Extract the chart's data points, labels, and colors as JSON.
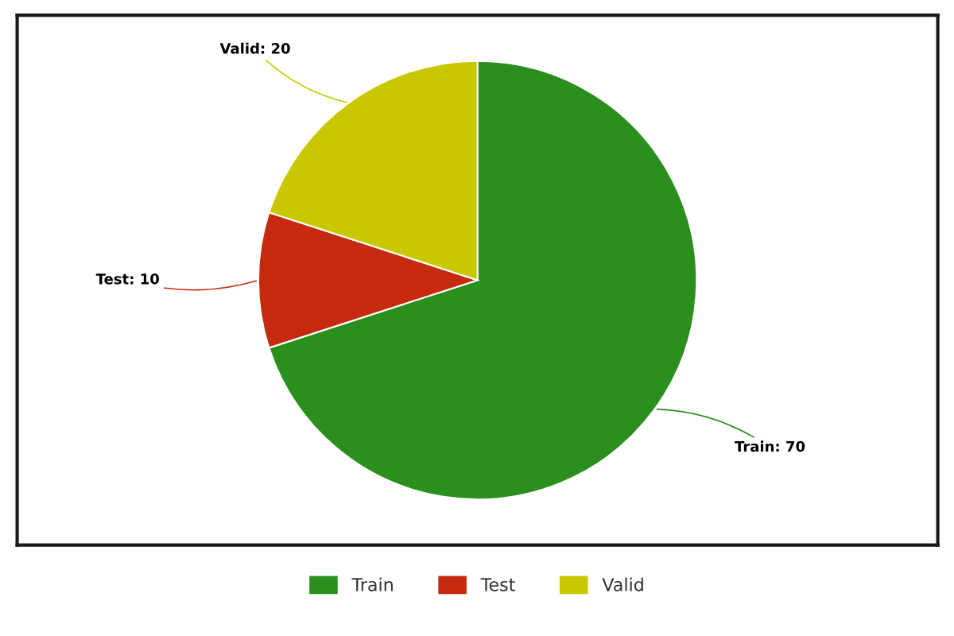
{
  "chart_data": {
    "type": "pie",
    "categories": [
      "Train",
      "Test",
      "Valid"
    ],
    "values": [
      70,
      10,
      20
    ],
    "value_labels": [
      "Train: 70",
      "Test: 10",
      "Valid: 20"
    ],
    "colors": [
      "#2a8f1c",
      "#c52a0e",
      "#c9c800"
    ],
    "legend": "bottom"
  }
}
